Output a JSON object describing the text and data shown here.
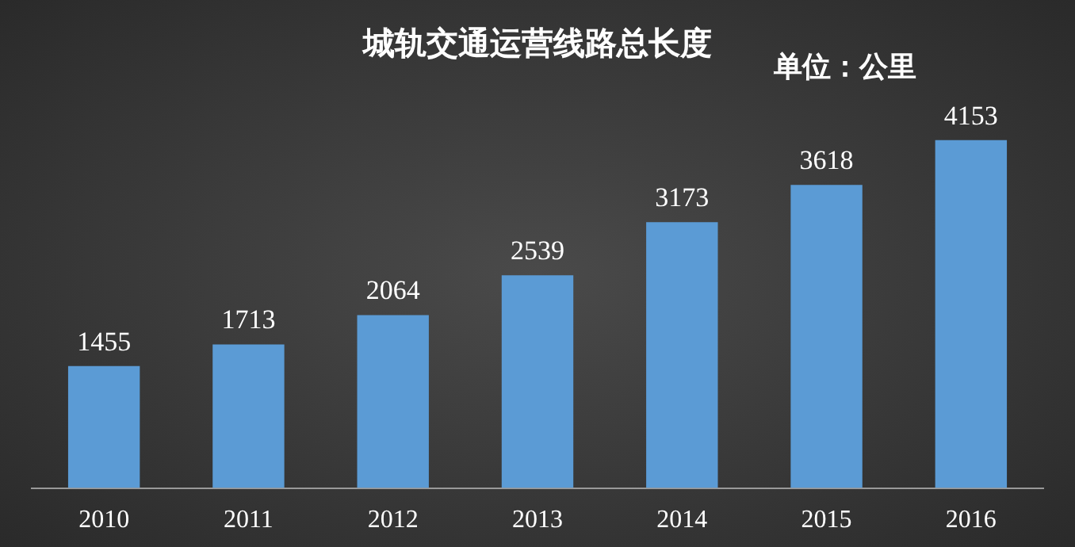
{
  "chart_data": {
    "type": "bar",
    "title": "城轨交通运营线路总长度",
    "annotations": [
      "单位：公里"
    ],
    "categories": [
      "2010",
      "2011",
      "2012",
      "2013",
      "2014",
      "2015",
      "2016"
    ],
    "values": [
      1455,
      1713,
      2064,
      2539,
      3173,
      3618,
      4153
    ],
    "color": "#5b9bd5",
    "data_labels": true,
    "grid": false,
    "tick_labels": "x",
    "legend": false
  }
}
